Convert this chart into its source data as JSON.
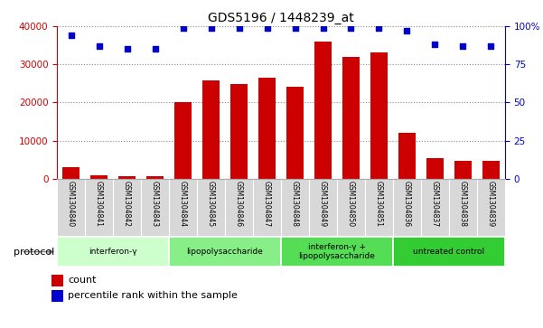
{
  "title": "GDS5196 / 1448239_at",
  "samples": [
    "GSM1304840",
    "GSM1304841",
    "GSM1304842",
    "GSM1304843",
    "GSM1304844",
    "GSM1304845",
    "GSM1304846",
    "GSM1304847",
    "GSM1304848",
    "GSM1304849",
    "GSM1304850",
    "GSM1304851",
    "GSM1304836",
    "GSM1304837",
    "GSM1304838",
    "GSM1304839"
  ],
  "counts": [
    3000,
    800,
    700,
    700,
    20200,
    25700,
    24800,
    26500,
    24200,
    36000,
    32000,
    33200,
    12000,
    5500,
    4800,
    4800
  ],
  "percentile_ranks": [
    94,
    87,
    85,
    85,
    99,
    99,
    99,
    99,
    99,
    99,
    99,
    99,
    97,
    88,
    87,
    87
  ],
  "groups": [
    {
      "label": "interferon-γ",
      "start": 0,
      "end": 3,
      "color": "#ccffcc"
    },
    {
      "label": "lipopolysaccharide",
      "start": 4,
      "end": 7,
      "color": "#88ee88"
    },
    {
      "label": "interferon-γ +\nlipopolysaccharide",
      "start": 8,
      "end": 11,
      "color": "#55dd55"
    },
    {
      "label": "untreated control",
      "start": 12,
      "end": 15,
      "color": "#33cc33"
    }
  ],
  "ylim_left": [
    0,
    40000
  ],
  "ylim_right": [
    0,
    100
  ],
  "yticks_left": [
    0,
    10000,
    20000,
    30000,
    40000
  ],
  "yticks_right": [
    0,
    25,
    50,
    75,
    100
  ],
  "bar_color": "#cc0000",
  "dot_color": "#0000cc",
  "plot_bg": "#ffffff",
  "sample_bg": "#d8d8d8",
  "left_tick_color": "#cc0000",
  "right_tick_color": "#0000cc",
  "grid_color": "#888888"
}
